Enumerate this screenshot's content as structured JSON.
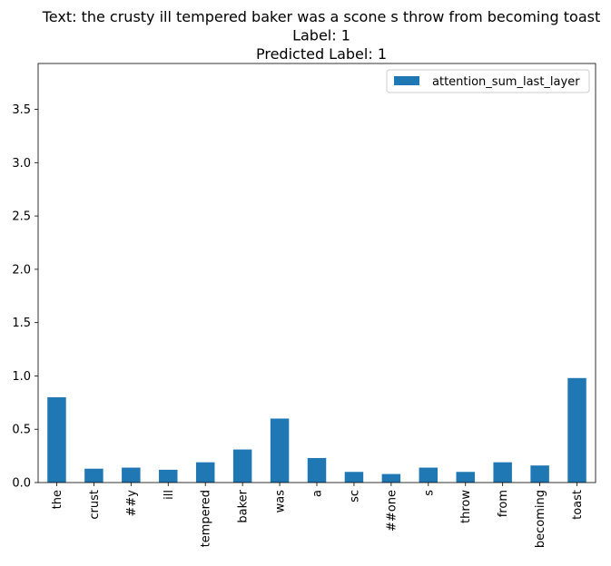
{
  "chart_data": {
    "type": "bar",
    "title": "Text: the crusty ill tempered baker was a scone s throw from becoming toast\nLabel: 1\nPredicted Label: 1",
    "xlabel": "",
    "ylabel": "",
    "categories": [
      "the",
      "crust",
      "##y",
      "ill",
      "tempered",
      "baker",
      "was",
      "a",
      "sc",
      "##one",
      "s",
      "throw",
      "from",
      "becoming",
      "toast"
    ],
    "series": [
      {
        "name": "attention_sum_last_layer",
        "values": [
          0.8,
          0.13,
          0.14,
          0.12,
          0.19,
          0.31,
          0.6,
          0.23,
          0.1,
          0.08,
          0.14,
          0.1,
          0.19,
          0.16,
          0.98
        ],
        "color": "#1f77b4"
      }
    ],
    "ylim": [
      0,
      3.93
    ],
    "yticks": [
      "0.0",
      "0.5",
      "1.0",
      "1.5",
      "2.0",
      "2.5",
      "3.0",
      "3.5"
    ],
    "legend_position": "top-right",
    "grid": false
  }
}
